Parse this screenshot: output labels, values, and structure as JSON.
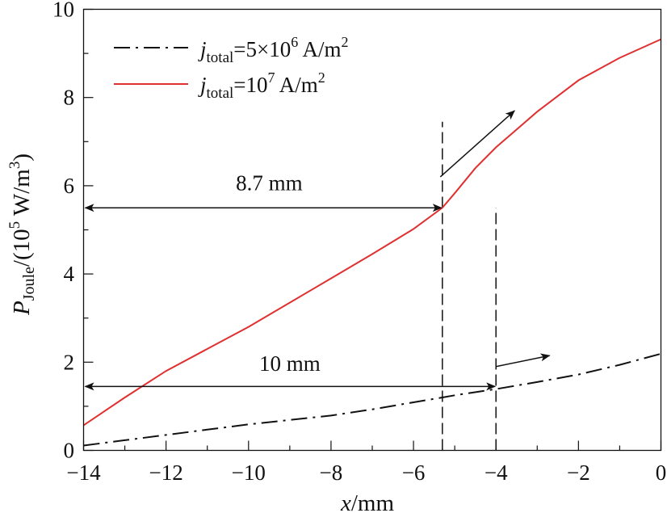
{
  "chart_data": {
    "type": "line",
    "title": "",
    "xlabel": {
      "italic": "x",
      "rest": "/mm"
    },
    "ylabel": {
      "main": "P",
      "sub": "Joule",
      "rest1": "/(10",
      "sup": "5",
      "rest2": " W/m",
      "sup2": "3",
      "rest3": ")"
    },
    "xlim": [
      -14,
      0
    ],
    "ylim": [
      0,
      10
    ],
    "xticks": [
      -14,
      -12,
      -10,
      -8,
      -6,
      -4,
      -2,
      0
    ],
    "xtick_labels": [
      "−14",
      "−12",
      "−10",
      "−8",
      "−6",
      "−4",
      "−2",
      "0"
    ],
    "yticks": [
      0,
      2,
      4,
      6,
      8,
      10
    ],
    "ytick_labels": [
      "0",
      "2",
      "4",
      "6",
      "8",
      "10"
    ],
    "grid": false,
    "legend_position": "top-left",
    "series": [
      {
        "name": "j_total=5×10^6 A/m^2",
        "legend": {
          "j": "j",
          "sub": "total",
          "eq": "=5×10",
          "sup": "6",
          "unit": " A/m",
          "sup2": "2"
        },
        "color": "#111111",
        "style": "dash-dot",
        "x": [
          -14,
          -13,
          -12,
          -11,
          -10,
          -9,
          -8,
          -7,
          -6,
          -5.3,
          -5,
          -4,
          -3,
          -2,
          -1,
          0
        ],
        "y": [
          0.11,
          0.23,
          0.35,
          0.47,
          0.59,
          0.69,
          0.79,
          0.93,
          1.09,
          1.2,
          1.25,
          1.39,
          1.55,
          1.72,
          1.94,
          2.19
        ]
      },
      {
        "name": "j_total=10^7 A/m^2",
        "legend": {
          "j": "j",
          "sub": "total",
          "eq": "=10",
          "sup": "7",
          "unit": " A/m",
          "sup2": "2"
        },
        "color": "#e03030",
        "style": "solid",
        "x": [
          -14,
          -13,
          -12,
          -11,
          -10,
          -9,
          -8,
          -7,
          -6,
          -5.3,
          -5,
          -4.5,
          -4,
          -3,
          -2,
          -1,
          0
        ],
        "y": [
          0.57,
          1.2,
          1.8,
          2.3,
          2.8,
          3.35,
          3.9,
          4.45,
          5.02,
          5.5,
          5.83,
          6.4,
          6.87,
          7.68,
          8.39,
          8.9,
          9.32
        ]
      }
    ],
    "annotations": [
      {
        "text": "8.7 mm",
        "type": "double-arrow",
        "x_from": -14,
        "x_to": -5.3,
        "y": 5.5,
        "label_x": -9.5,
        "label_y": 5.9
      },
      {
        "text": "10 mm",
        "type": "double-arrow",
        "x_from": -14,
        "x_to": -4,
        "y": 1.45,
        "label_x": -9,
        "label_y": 1.8
      }
    ],
    "vlines": [
      {
        "x": -5.3,
        "y_from": 0,
        "y_to": 7.45
      },
      {
        "x": -4,
        "y_from": 0,
        "y_to": 5.5
      }
    ],
    "arrows": [
      {
        "from": [
          -5.35,
          6.2
        ],
        "to": [
          -3.55,
          7.7
        ]
      },
      {
        "from": [
          -4.0,
          1.9
        ],
        "to": [
          -2.7,
          2.15
        ]
      }
    ]
  }
}
